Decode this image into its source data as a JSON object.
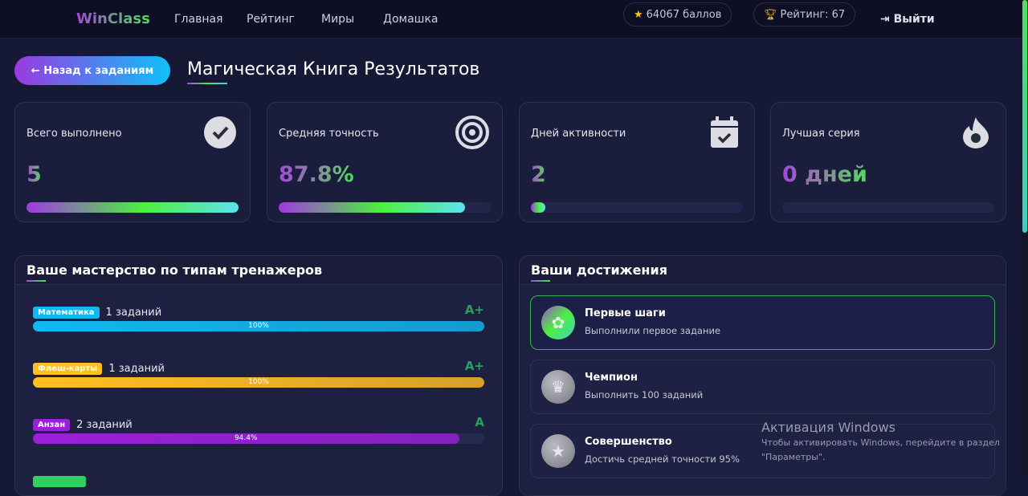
{
  "nav": {
    "logo": "WinClass",
    "links": [
      "Главная",
      "Рейтинг",
      "Миры",
      "Домашка"
    ],
    "points": "64067 баллов",
    "rating": "Рейтинг: 67",
    "logout": "Выйти"
  },
  "page": {
    "back": "← Назад к заданиям",
    "title": "Магическая Книга Результатов"
  },
  "stats": [
    {
      "label": "Всего выполнено",
      "value": "5",
      "icon": "check-circle-icon",
      "progress": 100
    },
    {
      "label": "Средняя точность",
      "value": "87.8%",
      "icon": "target-icon",
      "progress": 87.8
    },
    {
      "label": "Дней активности",
      "value": "2",
      "icon": "calendar-check-icon",
      "progress": 3
    },
    {
      "label": "Лучшая серия",
      "value": "0 дней",
      "icon": "fire-icon",
      "progress": 0
    }
  ],
  "mastery": {
    "title": "Ваше мастерство по типам тренажеров",
    "items": [
      {
        "tag": "Математика",
        "count": "1 заданий",
        "grade": "A+",
        "percent": "100%",
        "progress": 100,
        "color": "#10b8f0"
      },
      {
        "tag": "Флеш-карты",
        "count": "1 заданий",
        "grade": "A+",
        "percent": "100%",
        "progress": 100,
        "color": "#ffc020"
      },
      {
        "tag": "Анзан",
        "count": "2 заданий",
        "grade": "A",
        "percent": "94.4%",
        "progress": 94.4,
        "color": "#9a20d8"
      }
    ]
  },
  "achievements": {
    "title": "Ваши достижения",
    "items": [
      {
        "title": "Первые шаги",
        "desc": "Выполнили первое задание",
        "unlocked": true,
        "icon": "award-icon"
      },
      {
        "title": "Чемпион",
        "desc": "Выполнить 100 заданий",
        "unlocked": false,
        "icon": "crown-icon"
      },
      {
        "title": "Совершенство",
        "desc": "Достичь средней точности 95%",
        "unlocked": false,
        "icon": "star-icon"
      }
    ]
  },
  "watermark": {
    "title": "Активация Windows",
    "text1": "Чтобы активировать Windows, перейдите в раздел",
    "text2": "\"Параметры\"."
  }
}
